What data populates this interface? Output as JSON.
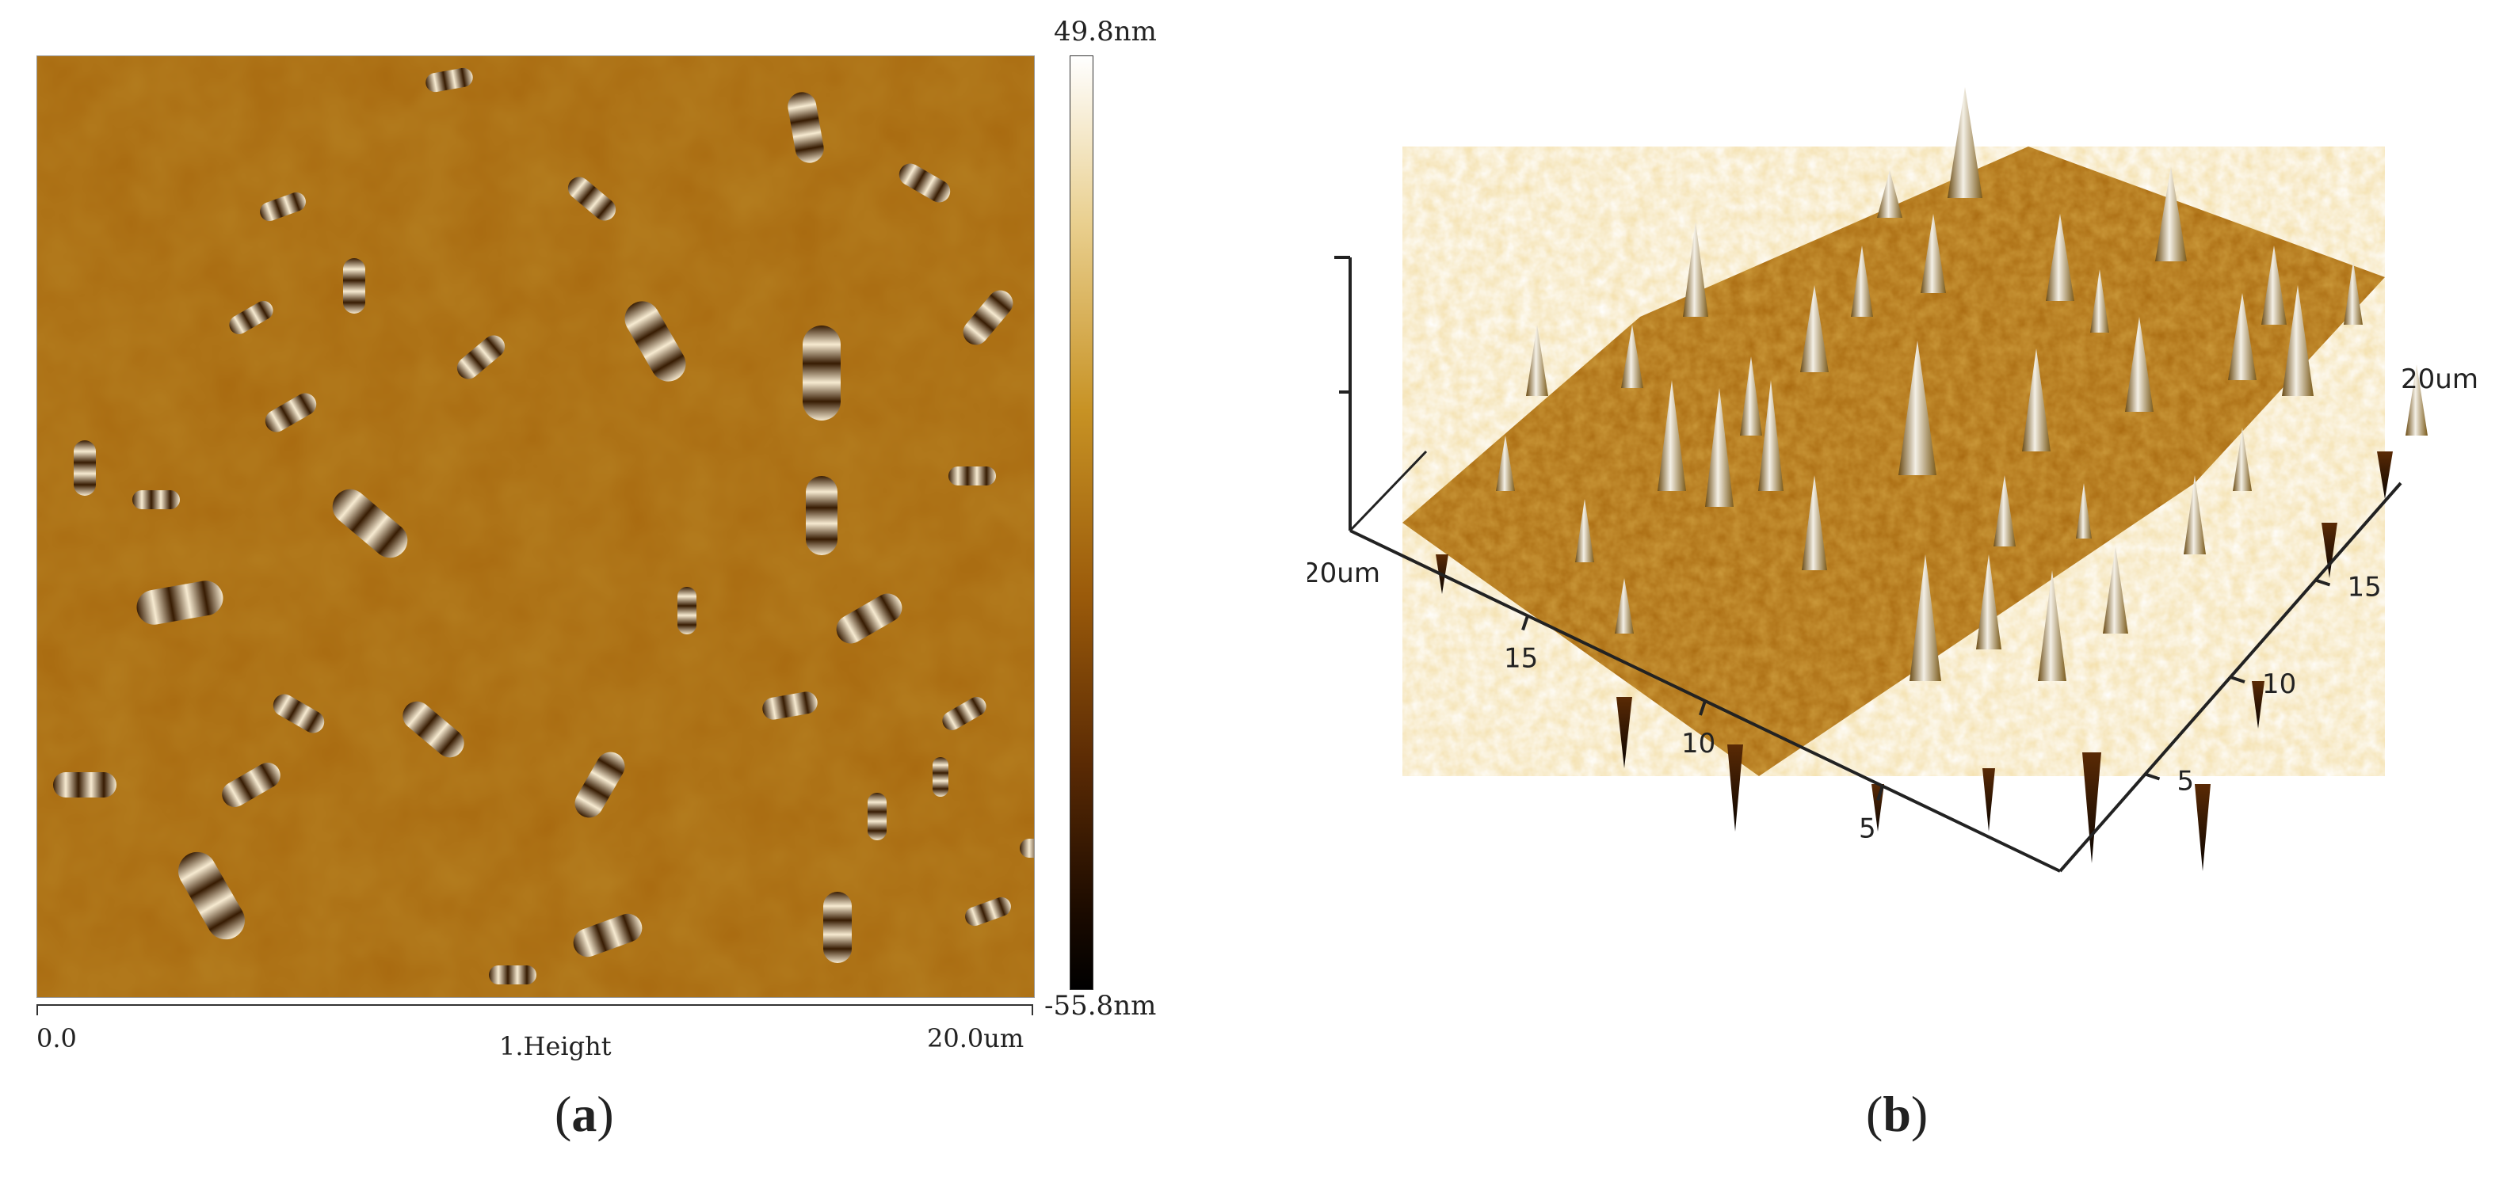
{
  "panel_a": {
    "colorbar_max": "49.8nm",
    "colorbar_min": "-55.8nm",
    "scale_start": "0.0",
    "scale_end": "20.0um",
    "scale_title": "1.Height",
    "caption_open": "(",
    "caption_letter": "a",
    "caption_close": ")"
  },
  "panel_b": {
    "x_axis_ticks": [
      "20um",
      "15",
      "10",
      "5"
    ],
    "y_axis_ticks": [
      "20um",
      "15",
      "10",
      "5"
    ],
    "caption_open": "(",
    "caption_letter": "b",
    "caption_close": ")"
  },
  "colors": {
    "surface_base": "#a8690f",
    "surface_light": "#e0b04a",
    "surface_dark": "#4a2305",
    "peak_highlight": "#f4f0e6"
  }
}
